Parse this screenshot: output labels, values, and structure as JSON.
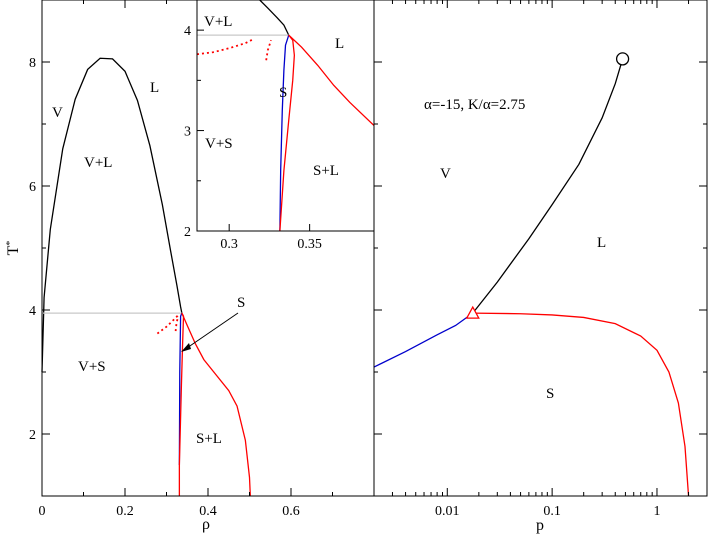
{
  "chart_data": [
    {
      "type": "line",
      "name": "main-phase-diagram",
      "xlabel": "ρ",
      "ylabel": "T*",
      "xlim": [
        0,
        0.8
      ],
      "ylim": [
        1.0,
        9.0
      ],
      "x_ticks": [
        "0",
        "0.2",
        "0.4",
        "0.6"
      ],
      "y_ticks": [
        "2",
        "4",
        "6",
        "8"
      ],
      "region_labels": {
        "V": "V",
        "L": "L",
        "VL": "V+L",
        "VS": "V+S",
        "SL": "S+L",
        "S": "S"
      },
      "series": [
        {
          "color": "#000000",
          "style": "solid",
          "points": [
            [
              0,
              3.0
            ],
            [
              0.005,
              4.2
            ],
            [
              0.02,
              5.3
            ],
            [
              0.05,
              6.6
            ],
            [
              0.08,
              7.4
            ],
            [
              0.11,
              7.88
            ],
            [
              0.14,
              8.06
            ],
            [
              0.17,
              8.05
            ],
            [
              0.2,
              7.85
            ],
            [
              0.23,
              7.38
            ],
            [
              0.26,
              6.65
            ],
            [
              0.29,
              5.7
            ],
            [
              0.31,
              4.95
            ],
            [
              0.325,
              4.4
            ],
            [
              0.334,
              4.05
            ],
            [
              0.337,
              3.95
            ]
          ]
        },
        {
          "color": "#c8c8c8",
          "style": "solid",
          "points": [
            [
              0,
              3.95
            ],
            [
              0.337,
              3.95
            ]
          ]
        },
        {
          "color": "#0000cc",
          "style": "solid",
          "points": [
            [
              0.331,
              1.5
            ],
            [
              0.332,
              3.0
            ],
            [
              0.334,
              3.9
            ],
            [
              0.337,
              3.95
            ]
          ]
        },
        {
          "color": "#ff0000",
          "style": "solid",
          "points": [
            [
              0.331,
              1.0
            ],
            [
              0.331,
              1.5
            ],
            [
              0.336,
              2.8
            ],
            [
              0.339,
              3.5
            ],
            [
              0.341,
              3.9
            ],
            [
              0.337,
              3.95
            ]
          ]
        },
        {
          "color": "#ff0000",
          "style": "solid",
          "points": [
            [
              0.337,
              3.95
            ],
            [
              0.35,
              3.75
            ],
            [
              0.37,
              3.45
            ],
            [
              0.39,
              3.2
            ],
            [
              0.42,
              2.95
            ],
            [
              0.45,
              2.7
            ],
            [
              0.47,
              2.45
            ],
            [
              0.49,
              1.9
            ],
            [
              0.5,
              1.3
            ],
            [
              0.502,
              1.0
            ]
          ]
        },
        {
          "color": "#ff0000",
          "style": "dotted",
          "points": [
            [
              0.278,
              3.62
            ],
            [
              0.3,
              3.73
            ],
            [
              0.32,
              3.86
            ],
            [
              0.33,
              3.93
            ]
          ]
        },
        {
          "color": "#ff0000",
          "style": "dotted",
          "points": [
            [
              0.322,
              3.66
            ],
            [
              0.324,
              3.78
            ],
            [
              0.328,
              3.9
            ]
          ]
        }
      ],
      "annotations": [
        {
          "text": "S",
          "x": 0.4,
          "y": 4.15,
          "arrow_to": [
            0.337,
            3.3
          ]
        }
      ]
    },
    {
      "type": "line",
      "name": "inset-zoom",
      "xlim": [
        0.28,
        0.39
      ],
      "ylim": [
        2.0,
        4.3
      ],
      "x_ticks": [
        "0.3",
        "0.35"
      ],
      "y_ticks": [
        "2",
        "3",
        "4"
      ],
      "region_labels": {
        "VL": "V+L",
        "L": "L",
        "S": "S",
        "VS": "V+S",
        "SL": "S+L"
      },
      "series": [
        {
          "color": "#000000",
          "style": "solid",
          "points": [
            [
              0.319,
              4.3
            ],
            [
              0.324,
              4.22
            ],
            [
              0.33,
              4.12
            ],
            [
              0.334,
              4.05
            ],
            [
              0.337,
              3.95
            ]
          ]
        },
        {
          "color": "#c8c8c8",
          "style": "solid",
          "points": [
            [
              0.28,
              3.95
            ],
            [
              0.337,
              3.95
            ]
          ]
        },
        {
          "color": "#0000cc",
          "style": "solid",
          "points": [
            [
              0.3315,
              2.0
            ],
            [
              0.332,
              2.6
            ],
            [
              0.333,
              3.2
            ],
            [
              0.334,
              3.6
            ],
            [
              0.335,
              3.85
            ],
            [
              0.337,
              3.95
            ]
          ]
        },
        {
          "color": "#ff0000",
          "style": "solid",
          "points": [
            [
              0.3315,
              2.0
            ],
            [
              0.334,
              2.6
            ],
            [
              0.337,
              3.1
            ],
            [
              0.3395,
              3.5
            ],
            [
              0.3405,
              3.75
            ],
            [
              0.3395,
              3.9
            ],
            [
              0.337,
              3.95
            ]
          ]
        },
        {
          "color": "#ff0000",
          "style": "solid",
          "points": [
            [
              0.337,
              3.95
            ],
            [
              0.345,
              3.83
            ],
            [
              0.355,
              3.65
            ],
            [
              0.365,
              3.45
            ],
            [
              0.375,
              3.28
            ],
            [
              0.39,
              3.05
            ]
          ]
        },
        {
          "color": "#ff0000",
          "style": "dotted",
          "points": [
            [
              0.28,
              3.76
            ],
            [
              0.29,
              3.78
            ],
            [
              0.3,
              3.82
            ],
            [
              0.31,
              3.87
            ],
            [
              0.315,
              3.91
            ]
          ]
        },
        {
          "color": "#ff0000",
          "style": "dotted",
          "points": [
            [
              0.323,
              3.7
            ],
            [
              0.324,
              3.8
            ],
            [
              0.326,
              3.9
            ]
          ]
        }
      ]
    },
    {
      "type": "line",
      "name": "pressure-temperature",
      "xlabel": "p",
      "xscale": "log",
      "xlim": [
        0.002,
        3.0
      ],
      "ylim": [
        1.0,
        9.0
      ],
      "x_ticks": [
        {
          "value": 0.01,
          "label": "0.01"
        },
        {
          "value": 0.1,
          "label": "0.1"
        },
        {
          "value": 1,
          "label": "1"
        }
      ],
      "title": "α=-15, K/α=2.75",
      "region_labels": {
        "V": "V",
        "L": "L",
        "S": "S"
      },
      "series": [
        {
          "color": "#0000cc",
          "style": "solid",
          "points": [
            [
              0.002,
              3.08
            ],
            [
              0.004,
              3.33
            ],
            [
              0.008,
              3.6
            ],
            [
              0.012,
              3.75
            ],
            [
              0.0175,
              3.95
            ]
          ]
        },
        {
          "color": "#000000",
          "style": "solid",
          "points": [
            [
              0.0175,
              3.95
            ],
            [
              0.03,
              4.45
            ],
            [
              0.06,
              5.15
            ],
            [
              0.1,
              5.7
            ],
            [
              0.18,
              6.35
            ],
            [
              0.3,
              7.1
            ],
            [
              0.4,
              7.65
            ],
            [
              0.47,
              8.05
            ]
          ]
        },
        {
          "color": "#ff0000",
          "style": "solid",
          "points": [
            [
              0.0175,
              3.95
            ],
            [
              0.05,
              3.94
            ],
            [
              0.1,
              3.92
            ],
            [
              0.2,
              3.88
            ],
            [
              0.4,
              3.78
            ],
            [
              0.7,
              3.58
            ],
            [
              1.0,
              3.35
            ],
            [
              1.3,
              3.0
            ],
            [
              1.6,
              2.5
            ],
            [
              1.85,
              1.8
            ],
            [
              2.0,
              1.0
            ]
          ]
        }
      ],
      "markers": [
        {
          "shape": "triangle",
          "color": "#ff0000",
          "x": 0.0175,
          "y": 3.95
        },
        {
          "shape": "circle",
          "color": "#000000",
          "x": 0.47,
          "y": 8.05
        }
      ]
    }
  ]
}
